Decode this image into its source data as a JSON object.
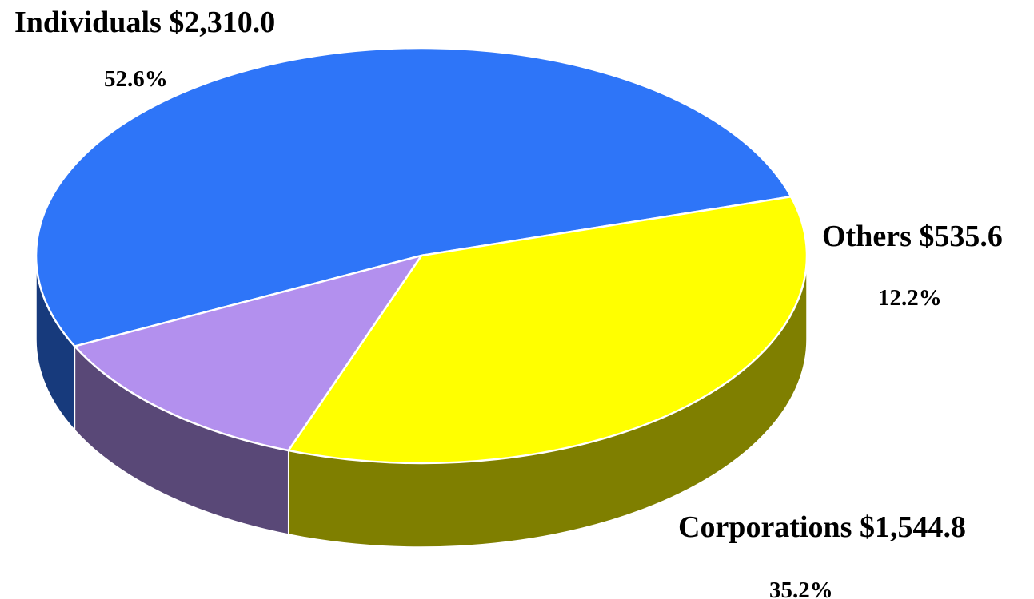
{
  "chart_data": {
    "type": "pie3d",
    "categories": [
      "Individuals",
      "Corporations",
      "Others"
    ],
    "values": [
      2310.0,
      1544.8,
      535.6
    ],
    "value_labels": [
      "$2,310.0",
      "$1,544.8",
      "$535.6"
    ],
    "percents": [
      52.6,
      35.2,
      12.2
    ],
    "percent_labels": [
      "52.6%",
      "35.2%",
      "12.2%"
    ],
    "colors": [
      "#2e75f8",
      "#ffff00",
      "#b390ee"
    ]
  }
}
